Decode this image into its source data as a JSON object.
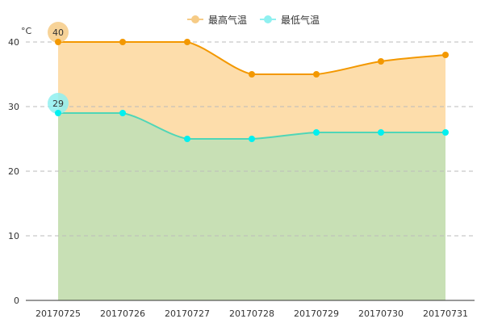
{
  "legend": {
    "max_label": "最高气温",
    "min_label": "最低气温"
  },
  "colors": {
    "max_line": "#F39800",
    "max_area": "#FDDDAB",
    "max_badge": "#F6CB86",
    "min_line": "#4FD6B7",
    "min_point": "#00F0F0",
    "min_area": "#C8E0B5",
    "min_badge": "#8FF0F0",
    "grid": "#bbbbbb",
    "axis": "#333333"
  },
  "chart_data": {
    "type": "area",
    "unit": "°C",
    "categories": [
      "20170725",
      "20170726",
      "20170727",
      "20170728",
      "20170729",
      "20170730",
      "20170731"
    ],
    "series": [
      {
        "name": "最高气温",
        "values": [
          40,
          40,
          40,
          35,
          35,
          37,
          38
        ]
      },
      {
        "name": "最低气温",
        "values": [
          29,
          29,
          25,
          25,
          26,
          26,
          26
        ]
      }
    ],
    "ylim": [
      0,
      40
    ],
    "yticks": [
      0,
      10,
      20,
      30,
      40
    ],
    "grid": true,
    "legend_position": "top-center",
    "max_marker": {
      "series": 0,
      "index": 0,
      "label": "40"
    },
    "min_marker": {
      "series": 1,
      "index": 0,
      "label": "29"
    }
  }
}
